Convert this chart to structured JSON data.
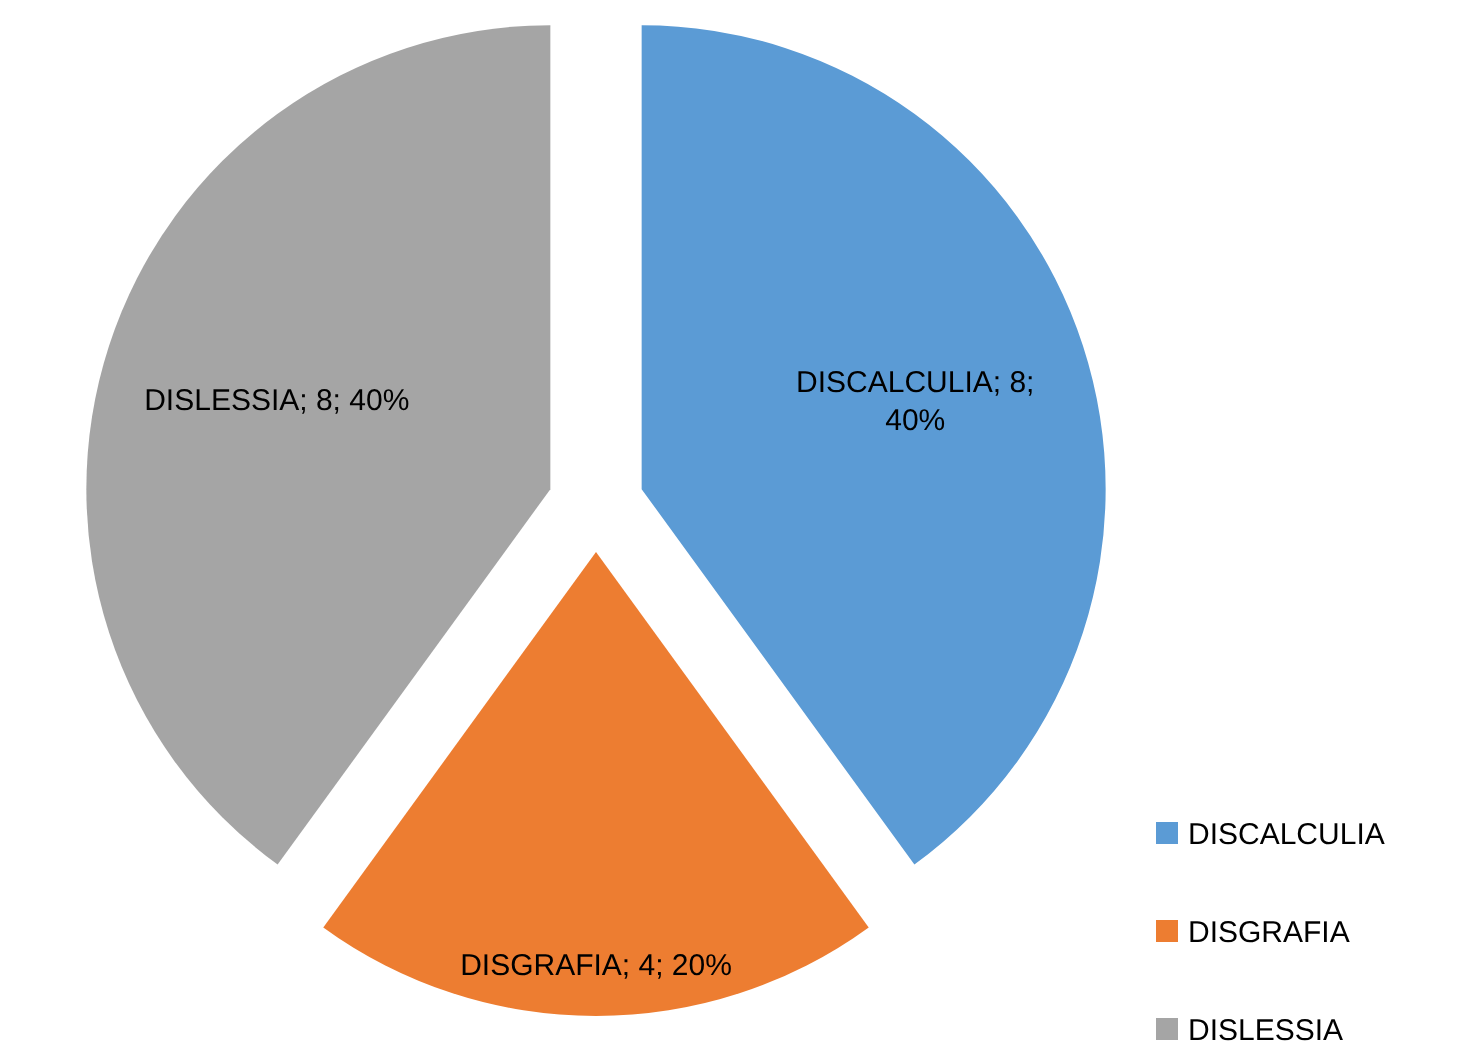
{
  "chart_data": {
    "type": "pie",
    "categories": [
      "DISCALCULIA",
      "DISGRAFIA",
      "DISLESSIA"
    ],
    "values": [
      8,
      4,
      8
    ],
    "colors": [
      "#5b9bd5",
      "#ed7d31",
      "#a5a5a5"
    ],
    "value_labels": [
      "DISCALCULIA; 8; 40%",
      "DISGRAFIA; 4; 20%",
      "DISLESSIA; 8; 40%"
    ],
    "legend": "bottom right"
  }
}
